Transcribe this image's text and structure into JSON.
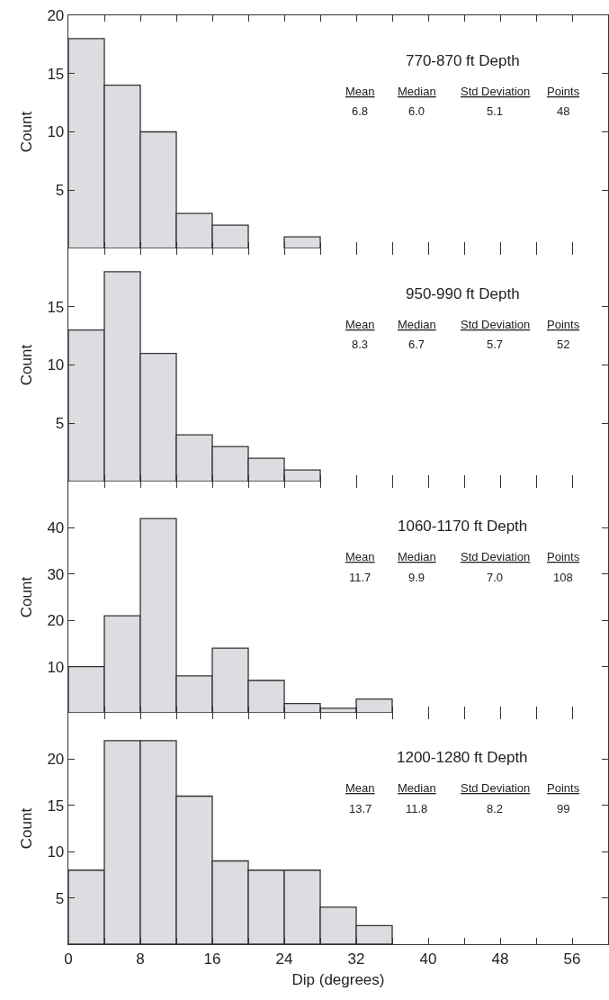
{
  "chart_data": [
    {
      "type": "histogram",
      "title": "770-870 ft Depth",
      "ylabel": "Count",
      "color": "#dcdde0",
      "bins": [
        0,
        4,
        8,
        12,
        16,
        20,
        24,
        28,
        32,
        36
      ],
      "values": [
        18,
        14,
        10,
        3,
        2,
        0,
        1,
        0,
        0
      ],
      "xlim": [
        0,
        60
      ],
      "xticks": [
        {
          "value": 0,
          "label": null
        },
        {
          "value": 4,
          "label": null
        },
        {
          "value": 8,
          "label": null
        },
        {
          "value": 12,
          "label": null
        },
        {
          "value": 16,
          "label": null
        },
        {
          "value": 20,
          "label": null
        },
        {
          "value": 24,
          "label": null
        },
        {
          "value": 28,
          "label": null
        },
        {
          "value": 32,
          "label": null
        },
        {
          "value": 36,
          "label": null
        },
        {
          "value": 40,
          "label": null
        },
        {
          "value": 44,
          "label": null
        },
        {
          "value": 48,
          "label": null
        },
        {
          "value": 52,
          "label": null
        },
        {
          "value": 56,
          "label": null
        }
      ],
      "ylim": [
        0,
        20
      ],
      "yticks": [
        5,
        10,
        15,
        20
      ],
      "tick_labels": "y",
      "annotations": [
        "Mean",
        "Median",
        "Std Deviation",
        "Points",
        "6.8",
        "6.0",
        "5.1",
        "48"
      ]
    },
    {
      "type": "histogram",
      "title": "950-990 ft Depth",
      "ylabel": "Count",
      "color": "#dcdde0",
      "bins": [
        0,
        4,
        8,
        12,
        16,
        20,
        24,
        28,
        32,
        36
      ],
      "values": [
        13,
        18,
        11,
        4,
        3,
        2,
        1,
        0,
        0
      ],
      "xlim": [
        0,
        60
      ],
      "xticks": [
        {
          "value": 0,
          "label": null
        },
        {
          "value": 4,
          "label": null
        },
        {
          "value": 8,
          "label": null
        },
        {
          "value": 12,
          "label": null
        },
        {
          "value": 16,
          "label": null
        },
        {
          "value": 20,
          "label": null
        },
        {
          "value": 24,
          "label": null
        },
        {
          "value": 28,
          "label": null
        },
        {
          "value": 32,
          "label": null
        },
        {
          "value": 36,
          "label": null
        },
        {
          "value": 40,
          "label": null
        },
        {
          "value": 44,
          "label": null
        },
        {
          "value": 48,
          "label": null
        },
        {
          "value": 52,
          "label": null
        },
        {
          "value": 56,
          "label": null
        }
      ],
      "ylim": [
        0,
        20
      ],
      "yticks": [
        5,
        10,
        15
      ],
      "tick_labels": "y",
      "annotations": [
        "Mean",
        "Median",
        "Std Deviation",
        "Points",
        "8.3",
        "6.7",
        "5.7",
        "52"
      ]
    },
    {
      "type": "histogram",
      "title": "1060-1170 ft Depth",
      "ylabel": "Count",
      "color": "#dcdde0",
      "bins": [
        0,
        4,
        8,
        12,
        16,
        20,
        24,
        28,
        32,
        36
      ],
      "values": [
        10,
        21,
        42,
        8,
        14,
        7,
        2,
        1,
        3
      ],
      "xlim": [
        0,
        60
      ],
      "xticks": [
        {
          "value": 0,
          "label": null
        },
        {
          "value": 4,
          "label": null
        },
        {
          "value": 8,
          "label": null
        },
        {
          "value": 12,
          "label": null
        },
        {
          "value": 16,
          "label": null
        },
        {
          "value": 20,
          "label": null
        },
        {
          "value": 24,
          "label": null
        },
        {
          "value": 28,
          "label": null
        },
        {
          "value": 32,
          "label": null
        },
        {
          "value": 36,
          "label": null
        },
        {
          "value": 40,
          "label": null
        },
        {
          "value": 44,
          "label": null
        },
        {
          "value": 48,
          "label": null
        },
        {
          "value": 52,
          "label": null
        },
        {
          "value": 56,
          "label": null
        }
      ],
      "ylim": [
        0,
        50
      ],
      "yticks": [
        10,
        20,
        30,
        40
      ],
      "tick_labels": "y",
      "annotations": [
        "Mean",
        "Median",
        "Std Deviation",
        "Points",
        "11.7",
        "9.9",
        "7.0",
        "108"
      ]
    },
    {
      "type": "histogram",
      "title": "1200-1280 ft Depth",
      "xlabel": "Dip (degrees)",
      "ylabel": "Count",
      "color": "#dcdde0",
      "bins": [
        0,
        4,
        8,
        12,
        16,
        20,
        24,
        28,
        32,
        36
      ],
      "values": [
        8,
        22,
        22,
        16,
        9,
        8,
        8,
        4,
        2
      ],
      "xlim": [
        0,
        60
      ],
      "xticks": [
        0,
        {
          "value": 4,
          "label": null
        },
        8,
        {
          "value": 12,
          "label": null
        },
        16,
        {
          "value": 20,
          "label": null
        },
        24,
        {
          "value": 28,
          "label": null
        },
        32,
        {
          "value": 36,
          "label": null
        },
        40,
        {
          "value": 44,
          "label": null
        },
        48,
        {
          "value": 52,
          "label": null
        },
        56
      ],
      "ylim": [
        0,
        25
      ],
      "yticks": [
        5,
        10,
        15,
        20
      ],
      "annotations": [
        "Mean",
        "Median",
        "Std Deviation",
        "Points",
        "13.7",
        "11.8",
        "8.2",
        "99"
      ]
    }
  ]
}
